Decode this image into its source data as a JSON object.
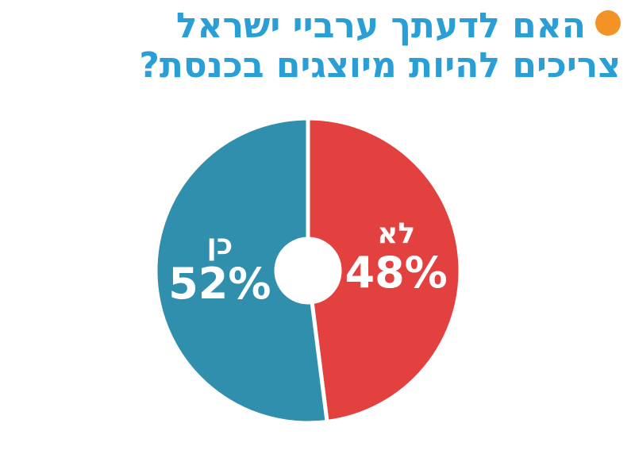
{
  "title_lines": [
    "האם לדעתך ערביי ישראל",
    "צריכים להיות מיוצגים בכנסת?"
  ],
  "colors": {
    "title": "#2a9fd6",
    "bullet": "#f39325",
    "background": "#ffffff"
  },
  "chart_data": {
    "type": "pie",
    "donut": true,
    "title": "האם לדעתך ערביי ישראל צריכים להיות מיוצגים בכנסת?",
    "categories": [
      "לא",
      "כן"
    ],
    "values": [
      48,
      52
    ],
    "value_labels": [
      "48%",
      "52%"
    ],
    "colors": [
      "#e2413f",
      "#2f8fad"
    ],
    "legend": "none"
  }
}
